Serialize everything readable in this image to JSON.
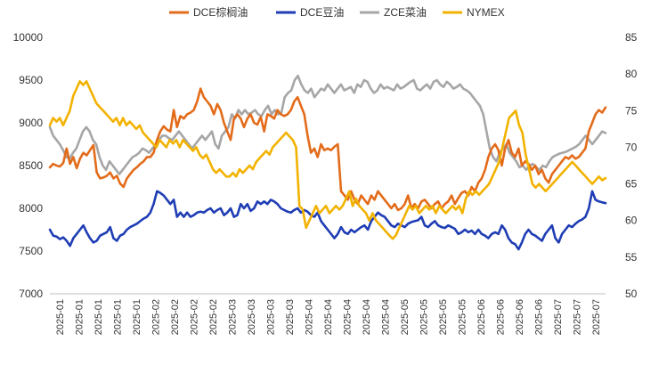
{
  "chart_data": {
    "type": "line",
    "title": "",
    "xlabel": "",
    "ylabel": "",
    "ylim": [
      7000,
      10000
    ],
    "y2lim": [
      50,
      85
    ],
    "yticks": [
      7000,
      7500,
      8000,
      8500,
      9000,
      9500,
      10000
    ],
    "y2ticks": [
      50,
      55,
      60,
      65,
      70,
      75,
      80,
      85
    ],
    "grid": false,
    "legend_position": "top",
    "x_tick_labels": [
      "2025-01",
      "2025-01",
      "2025-01",
      "2025-01",
      "2025-01",
      "2025-02",
      "2025-02",
      "2025-02",
      "2025-02",
      "2025-03",
      "2025-03",
      "2025-03",
      "2025-03",
      "2025-04",
      "2025-04",
      "2025-04",
      "2025-04",
      "2025-04",
      "2025-05",
      "2025-05",
      "2025-05",
      "2025-05",
      "2025-06",
      "2025-06",
      "2025-06",
      "2025-06",
      "2025-07",
      "2025-07",
      "2025-07"
    ],
    "series": [
      {
        "name": "DCE棕榈油",
        "axis": "left",
        "color": "#E36C1B",
        "values": [
          8480,
          8520,
          8500,
          8490,
          8530,
          8700,
          8520,
          8600,
          8470,
          8580,
          8650,
          8620,
          8680,
          8740,
          8420,
          8350,
          8360,
          8380,
          8420,
          8350,
          8380,
          8290,
          8250,
          8350,
          8400,
          8450,
          8480,
          8520,
          8550,
          8600,
          8600,
          8650,
          8800,
          8900,
          8960,
          8920,
          8900,
          9150,
          8950,
          9080,
          9050,
          9100,
          9120,
          9150,
          9250,
          9400,
          9300,
          9250,
          9200,
          9100,
          9220,
          9150,
          9000,
          8900,
          8800,
          9050,
          9100,
          9050,
          8950,
          9050,
          9100,
          9000,
          8980,
          9070,
          8900,
          9100,
          9080,
          9050,
          9150,
          9100,
          9080,
          9100,
          9150,
          9250,
          9300,
          9200,
          9100,
          8850,
          8650,
          8700,
          8600,
          8750,
          8680,
          8700,
          8680,
          8720,
          8750,
          8200,
          8150,
          8100,
          8200,
          8100,
          8050,
          8150,
          8100,
          8050,
          8150,
          8100,
          8200,
          8150,
          8100,
          8050,
          8000,
          8050,
          7980,
          8000,
          8050,
          8150,
          8000,
          8050,
          8000,
          8080,
          8100,
          8050,
          8000,
          8050,
          8080,
          8000,
          8050,
          8080,
          8150,
          8050,
          8120,
          8180,
          8200,
          8150,
          8250,
          8200,
          8300,
          8350,
          8450,
          8600,
          8700,
          8750,
          8680,
          8500,
          8700,
          8800,
          8650,
          8600,
          8700,
          8500,
          8550,
          8520,
          8450,
          8500,
          8400,
          8450,
          8350,
          8300,
          8400,
          8450,
          8500,
          8550,
          8600,
          8580,
          8620,
          8580,
          8600,
          8650,
          8700,
          8900,
          9000,
          9100,
          9150,
          9120,
          9180
        ]
      },
      {
        "name": "DCE豆油",
        "axis": "left",
        "color": "#1F3DB4",
        "values": [
          7750,
          7680,
          7670,
          7640,
          7660,
          7620,
          7560,
          7650,
          7700,
          7750,
          7800,
          7720,
          7650,
          7600,
          7620,
          7680,
          7700,
          7720,
          7780,
          7650,
          7620,
          7680,
          7700,
          7750,
          7780,
          7800,
          7820,
          7850,
          7880,
          7900,
          7950,
          8050,
          8200,
          8180,
          8150,
          8100,
          8050,
          8100,
          7900,
          7950,
          7900,
          7950,
          7900,
          7920,
          7950,
          7960,
          7950,
          7980,
          8000,
          7950,
          7980,
          8000,
          7920,
          7950,
          8000,
          7900,
          7920,
          8050,
          8000,
          8050,
          7970,
          8000,
          8080,
          8050,
          8080,
          8050,
          8100,
          8080,
          8050,
          8000,
          7980,
          7960,
          7950,
          7980,
          8000,
          7950,
          7980,
          7960,
          7920,
          7900,
          7950,
          7850,
          7800,
          7750,
          7700,
          7650,
          7700,
          7780,
          7720,
          7700,
          7750,
          7720,
          7750,
          7780,
          7800,
          7750,
          7850,
          7900,
          7950,
          7920,
          7900,
          7850,
          7800,
          7780,
          7820,
          7800,
          7780,
          7820,
          7840,
          7850,
          7860,
          7900,
          7800,
          7780,
          7820,
          7850,
          7800,
          7780,
          7770,
          7800,
          7780,
          7760,
          7700,
          7720,
          7750,
          7720,
          7740,
          7700,
          7750,
          7700,
          7680,
          7650,
          7700,
          7720,
          7700,
          7800,
          7750,
          7650,
          7600,
          7580,
          7520,
          7600,
          7700,
          7750,
          7700,
          7680,
          7650,
          7620,
          7700,
          7750,
          7800,
          7650,
          7600,
          7700,
          7750,
          7800,
          7780,
          7820,
          7850,
          7870,
          7900,
          8000,
          8200,
          8100,
          8080,
          8070,
          8060
        ]
      },
      {
        "name": "ZCE菜油",
        "axis": "left",
        "color": "#A6A6A6",
        "values": [
          8950,
          8850,
          8800,
          8750,
          8680,
          8600,
          8580,
          8650,
          8700,
          8800,
          8900,
          8950,
          8900,
          8800,
          8750,
          8600,
          8500,
          8450,
          8550,
          8500,
          8450,
          8400,
          8450,
          8500,
          8550,
          8600,
          8620,
          8650,
          8700,
          8680,
          8650,
          8700,
          8750,
          8800,
          8850,
          8850,
          8820,
          8800,
          8850,
          8900,
          8850,
          8800,
          8750,
          8700,
          8750,
          8800,
          8850,
          8800,
          8850,
          8900,
          8750,
          8700,
          8850,
          8900,
          8950,
          9100,
          9050,
          9150,
          9100,
          9150,
          9100,
          9120,
          9150,
          9100,
          9080,
          9150,
          9200,
          9100,
          9150,
          9100,
          9120,
          9300,
          9350,
          9380,
          9500,
          9550,
          9450,
          9380,
          9350,
          9400,
          9300,
          9350,
          9400,
          9380,
          9450,
          9400,
          9350,
          9400,
          9450,
          9380,
          9400,
          9420,
          9350,
          9450,
          9420,
          9500,
          9480,
          9400,
          9350,
          9380,
          9450,
          9400,
          9420,
          9400,
          9380,
          9450,
          9400,
          9420,
          9450,
          9480,
          9500,
          9400,
          9380,
          9420,
          9450,
          9400,
          9480,
          9500,
          9450,
          9420,
          9480,
          9450,
          9400,
          9420,
          9450,
          9400,
          9380,
          9350,
          9300,
          9250,
          9200,
          9100,
          8900,
          8700,
          8600,
          8550,
          8650,
          8700,
          8750,
          8650,
          8600,
          8550,
          8480,
          8500,
          8450,
          8500,
          8520,
          8480,
          8450,
          8500,
          8480,
          8550,
          8600,
          8620,
          8640,
          8650,
          8660,
          8680,
          8700,
          8720,
          8750,
          8800,
          8850,
          8800,
          8750,
          8800,
          8850,
          8900,
          8880
        ]
      },
      {
        "name": "NYMEX",
        "axis": "right",
        "color": "#F2B200",
        "values": [
          73,
          74,
          73.5,
          74,
          73,
          74,
          75,
          77,
          78,
          79,
          78.5,
          79,
          78,
          77,
          76,
          75.5,
          75,
          74.5,
          74,
          73.5,
          74,
          73,
          74,
          73,
          73.5,
          73,
          72.5,
          73,
          72,
          71.5,
          71,
          70.5,
          70,
          71,
          70.5,
          70,
          71,
          70.5,
          71,
          70,
          71,
          70.5,
          70,
          69.5,
          70,
          69,
          68.5,
          69,
          68,
          67,
          66.5,
          67,
          66.5,
          66,
          66,
          66.5,
          66,
          67,
          66.5,
          67,
          67.5,
          67,
          68,
          68.5,
          69,
          69.5,
          69,
          70,
          70.5,
          71,
          71.5,
          72,
          71.5,
          71,
          70,
          62,
          61.5,
          59,
          60,
          61,
          62,
          61,
          61.5,
          62,
          61,
          61.5,
          62,
          61.5,
          62,
          63,
          64,
          62,
          63,
          62,
          61.5,
          61,
          60,
          61,
          60,
          59.5,
          59,
          58.5,
          58,
          57.5,
          58,
          59,
          60,
          61,
          62,
          61.5,
          62,
          61,
          61.5,
          62,
          61.5,
          62,
          61,
          62,
          61.5,
          61,
          61.5,
          62,
          61.5,
          62,
          61,
          63,
          64,
          63.5,
          64,
          63.5,
          64,
          64.5,
          65,
          66,
          67,
          68,
          70,
          72,
          74,
          74.5,
          75,
          73,
          72,
          69,
          67,
          65,
          64.5,
          65,
          64.5,
          64,
          64.5,
          65,
          65.5,
          66,
          66.5,
          67,
          67.5,
          68,
          67.5,
          67,
          66.5,
          66,
          65.5,
          65,
          65.5,
          66,
          65.5,
          65.8
        ]
      }
    ]
  }
}
